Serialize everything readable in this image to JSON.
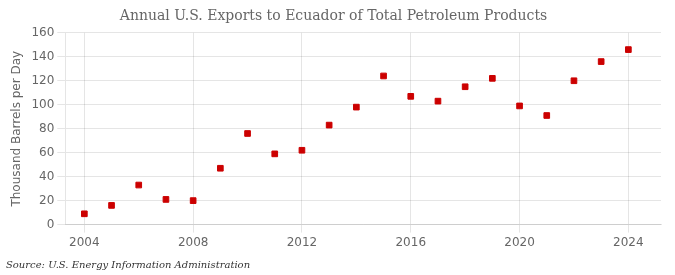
{
  "chart_data": {
    "type": "scatter",
    "title": "Annual U.S. Exports to Ecuador of Total Petroleum Products",
    "ylabel": "Thousand Barrels per Day",
    "annotations": [
      "Source: U.S. Energy Information Administration"
    ],
    "x": [
      2004,
      2005,
      2006,
      2007,
      2008,
      2009,
      2010,
      2011,
      2012,
      2013,
      2014,
      2015,
      2016,
      2017,
      2018,
      2019,
      2020,
      2021,
      2022,
      2023,
      2024
    ],
    "values": [
      9,
      16,
      33,
      21,
      20,
      47,
      76,
      59,
      62,
      83,
      98,
      124,
      107,
      103,
      115,
      122,
      99,
      91,
      120,
      136,
      146
    ],
    "color": "#cc0000",
    "marker": "square",
    "xlim": [
      2003.3,
      2025.2
    ],
    "xticks": [
      2004,
      2008,
      2012,
      2016,
      2020,
      2024
    ],
    "ylim": [
      0,
      160
    ],
    "yticks": [
      0,
      20,
      40,
      60,
      80,
      100,
      120,
      140,
      160
    ],
    "grid": true
  }
}
